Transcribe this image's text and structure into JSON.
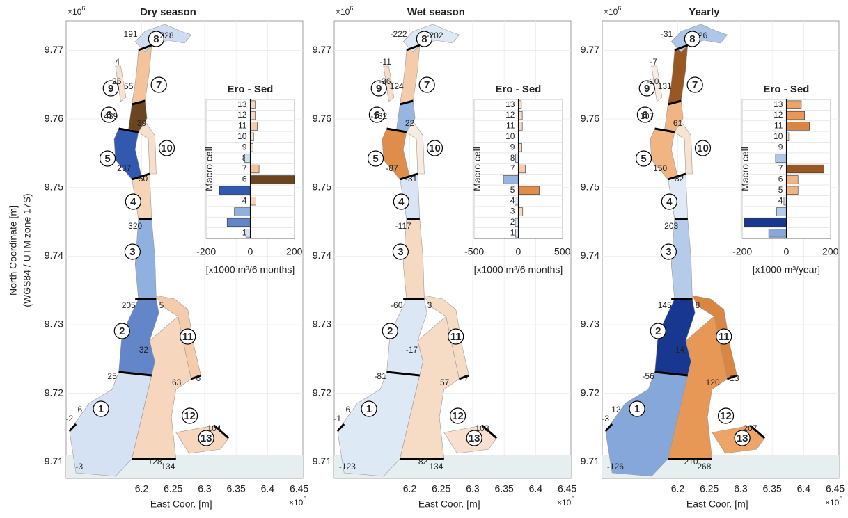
{
  "ylabel": [
    "North Coordinate [m]",
    "(WGS84 / UTM zone 17S)"
  ],
  "maps": [
    {
      "title": "Dry season",
      "xlabel": "East Coor. [m]",
      "xlim": [
        6.08,
        6.456
      ],
      "ylim": [
        9.7076,
        9.7743
      ],
      "xticks": [
        6.2,
        6.25,
        6.3,
        6.35,
        6.4,
        6.45
      ],
      "yticks": [
        9.71,
        9.72,
        9.73,
        9.74,
        9.75,
        9.76,
        9.77
      ],
      "x_multiplier": [
        "×10",
        "5"
      ],
      "y_multiplier": [
        "×10",
        "6"
      ],
      "fluxes": [
        228,
        191,
        4,
        26,
        55,
        439,
        39,
        50,
        237,
        320,
        205,
        5,
        32,
        25,
        63,
        6,
        -2,
        6,
        -3,
        128,
        104,
        134
      ]
    },
    {
      "title": "Wet season",
      "xlabel": "East Coor. [m]",
      "xlim": [
        6.08,
        6.456
      ],
      "ylim": [
        9.7076,
        9.7743
      ],
      "xticks": [
        6.2,
        6.25,
        6.3,
        6.35,
        6.4,
        6.45
      ],
      "yticks": [
        9.71,
        9.72,
        9.73,
        9.74,
        9.75,
        9.76,
        9.77
      ],
      "x_multiplier": [
        "×10",
        "5"
      ],
      "y_multiplier": [
        "×10",
        "6"
      ],
      "fluxes": [
        -202,
        -222,
        -11,
        -36,
        124,
        -332,
        22,
        -31,
        -87,
        -117,
        -60,
        3,
        -17,
        -81,
        57,
        7,
        -1,
        6,
        -123,
        82,
        103,
        134
      ]
    },
    {
      "title": "Yearly",
      "xlabel": "East Coor. [m]",
      "xlim": [
        6.08,
        6.456
      ],
      "ylim": [
        9.7076,
        9.7743
      ],
      "xticks": [
        6.2,
        6.25,
        6.3,
        6.35,
        6.4,
        6.45
      ],
      "yticks": [
        9.71,
        9.72,
        9.73,
        9.74,
        9.75,
        9.76,
        9.77
      ],
      "x_multiplier": [
        "×10",
        "5"
      ],
      "y_multiplier": [
        "×10",
        "6"
      ],
      "fluxes": [
        26,
        -31,
        -7,
        -10,
        131,
        107,
        61,
        82,
        150,
        203,
        145,
        8,
        14,
        -56,
        120,
        13,
        -3,
        12,
        -126,
        210,
        207,
        268
      ]
    }
  ],
  "chart_data": [
    {
      "type": "barh",
      "title": "Ero - Sed",
      "ylabel": "Macro cell",
      "xlabel": "[x1000 m³/6 months]",
      "categories": [
        1,
        2,
        3,
        4,
        5,
        6,
        7,
        8,
        9,
        10,
        11,
        12,
        13
      ],
      "values": [
        -20,
        -105,
        -72,
        25,
        -140,
        200,
        40,
        -25,
        12,
        15,
        32,
        22,
        22
      ],
      "xlim": [
        -200,
        200
      ],
      "xticks": [
        -200,
        0,
        200
      ]
    },
    {
      "type": "barh",
      "title": "Ero - Sed",
      "ylabel": "Macro cell",
      "xlabel": "[x1000 m³/6 months]",
      "categories": [
        1,
        2,
        3,
        4,
        5,
        6,
        7,
        8,
        9,
        10,
        11,
        12,
        13
      ],
      "values": [
        -30,
        -35,
        50,
        -40,
        240,
        -170,
        80,
        -30,
        40,
        10,
        45,
        45,
        35
      ],
      "xlim": [
        -500,
        500
      ],
      "xticks": [
        -500,
        0,
        500
      ]
    },
    {
      "type": "barh",
      "title": "Ero - Sed",
      "ylabel": "Macro cell",
      "xlabel": "[x1000 m³/year]",
      "categories": [
        1,
        2,
        3,
        4,
        5,
        6,
        7,
        8,
        9,
        10,
        11,
        12,
        13
      ],
      "values": [
        -80,
        -190,
        -45,
        -11,
        53,
        53,
        170,
        -49,
        2,
        11,
        105,
        83,
        68
      ],
      "xlim": [
        -200,
        200
      ],
      "xticks": [
        -200,
        0,
        200
      ]
    }
  ]
}
